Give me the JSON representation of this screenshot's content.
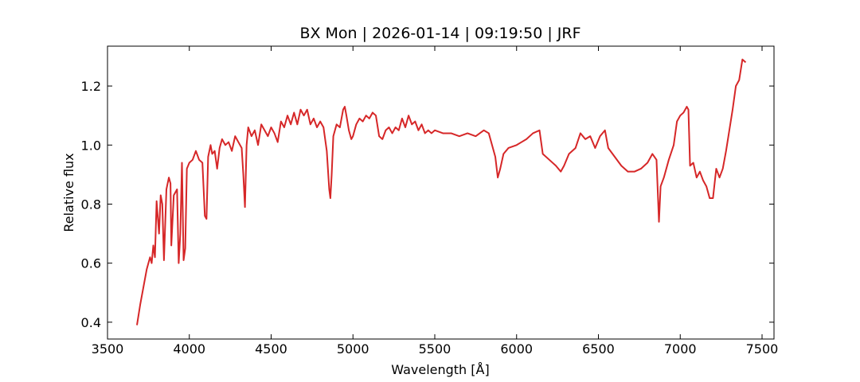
{
  "chart_data": {
    "type": "line",
    "title": "BX Mon | 2026-01-14 | 09:19:50 | JRF",
    "xlabel": "Wavelength [Å]",
    "ylabel": "Relative flux",
    "x": [
      3680,
      3700,
      3720,
      3740,
      3760,
      3770,
      3780,
      3790,
      3800,
      3815,
      3825,
      3835,
      3845,
      3860,
      3875,
      3885,
      3890,
      3905,
      3925,
      3935,
      3945,
      3955,
      3965,
      3975,
      3985,
      4000,
      4020,
      4040,
      4060,
      4080,
      4095,
      4105,
      4115,
      4130,
      4140,
      4155,
      4170,
      4185,
      4200,
      4220,
      4240,
      4260,
      4280,
      4300,
      4320,
      4330,
      4340,
      4350,
      4360,
      4380,
      4400,
      4420,
      4440,
      4460,
      4480,
      4500,
      4520,
      4540,
      4560,
      4580,
      4600,
      4620,
      4640,
      4660,
      4680,
      4700,
      4720,
      4740,
      4760,
      4780,
      4800,
      4820,
      4840,
      4855,
      4862,
      4870,
      4880,
      4900,
      4920,
      4940,
      4950,
      4960,
      4975,
      4990,
      5000,
      5020,
      5040,
      5060,
      5080,
      5100,
      5120,
      5140,
      5160,
      5180,
      5200,
      5220,
      5240,
      5260,
      5280,
      5300,
      5320,
      5340,
      5360,
      5380,
      5400,
      5420,
      5440,
      5460,
      5480,
      5500,
      5550,
      5600,
      5650,
      5700,
      5750,
      5800,
      5830,
      5850,
      5870,
      5885,
      5900,
      5920,
      5950,
      6000,
      6030,
      6060,
      6100,
      6140,
      6160,
      6200,
      6240,
      6270,
      6290,
      6320,
      6360,
      6390,
      6420,
      6450,
      6480,
      6510,
      6540,
      6560,
      6600,
      6640,
      6680,
      6720,
      6760,
      6800,
      6830,
      6855,
      6870,
      6880,
      6900,
      6930,
      6960,
      6980,
      7000,
      7020,
      7040,
      7050,
      7060,
      7080,
      7100,
      7120,
      7140,
      7160,
      7180,
      7200,
      7220,
      7240,
      7260,
      7280,
      7300,
      7320,
      7340,
      7360,
      7380,
      7400
    ],
    "series": [
      {
        "color": "#d62728",
        "values": [
          0.39,
          0.46,
          0.52,
          0.58,
          0.62,
          0.6,
          0.66,
          0.62,
          0.81,
          0.7,
          0.83,
          0.8,
          0.61,
          0.85,
          0.89,
          0.87,
          0.66,
          0.83,
          0.85,
          0.6,
          0.7,
          0.94,
          0.61,
          0.65,
          0.92,
          0.94,
          0.95,
          0.98,
          0.95,
          0.94,
          0.76,
          0.75,
          0.96,
          1.0,
          0.97,
          0.98,
          0.92,
          0.99,
          1.02,
          1.0,
          1.01,
          0.98,
          1.03,
          1.01,
          0.99,
          0.9,
          0.79,
          1.0,
          1.06,
          1.03,
          1.05,
          1.0,
          1.07,
          1.05,
          1.03,
          1.06,
          1.04,
          1.01,
          1.08,
          1.06,
          1.1,
          1.07,
          1.11,
          1.07,
          1.12,
          1.1,
          1.12,
          1.07,
          1.09,
          1.06,
          1.08,
          1.06,
          0.98,
          0.85,
          0.82,
          0.9,
          1.03,
          1.07,
          1.06,
          1.12,
          1.13,
          1.1,
          1.05,
          1.02,
          1.03,
          1.07,
          1.09,
          1.08,
          1.1,
          1.09,
          1.11,
          1.1,
          1.03,
          1.02,
          1.05,
          1.06,
          1.04,
          1.06,
          1.05,
          1.09,
          1.06,
          1.1,
          1.07,
          1.08,
          1.05,
          1.07,
          1.04,
          1.05,
          1.04,
          1.05,
          1.04,
          1.04,
          1.03,
          1.04,
          1.03,
          1.05,
          1.04,
          1.0,
          0.96,
          0.89,
          0.92,
          0.97,
          0.99,
          1.0,
          1.01,
          1.02,
          1.04,
          1.05,
          0.97,
          0.95,
          0.93,
          0.91,
          0.93,
          0.97,
          0.99,
          1.04,
          1.02,
          1.03,
          0.99,
          1.03,
          1.05,
          0.99,
          0.96,
          0.93,
          0.91,
          0.91,
          0.92,
          0.94,
          0.97,
          0.95,
          0.74,
          0.86,
          0.89,
          0.95,
          1.0,
          1.08,
          1.1,
          1.11,
          1.13,
          1.12,
          0.93,
          0.94,
          0.89,
          0.91,
          0.88,
          0.86,
          0.82,
          0.82,
          0.92,
          0.89,
          0.92,
          0.98,
          1.05,
          1.12,
          1.2,
          1.22,
          1.29,
          1.28
        ]
      }
    ],
    "xlim": [
      3500,
      7573
    ],
    "ylim": [
      0.343,
      1.335
    ],
    "xticks": [
      3500,
      4000,
      4500,
      5000,
      5500,
      6000,
      6500,
      7000,
      7500
    ],
    "yticks": [
      0.4,
      0.6,
      0.8,
      1.0,
      1.2
    ]
  }
}
